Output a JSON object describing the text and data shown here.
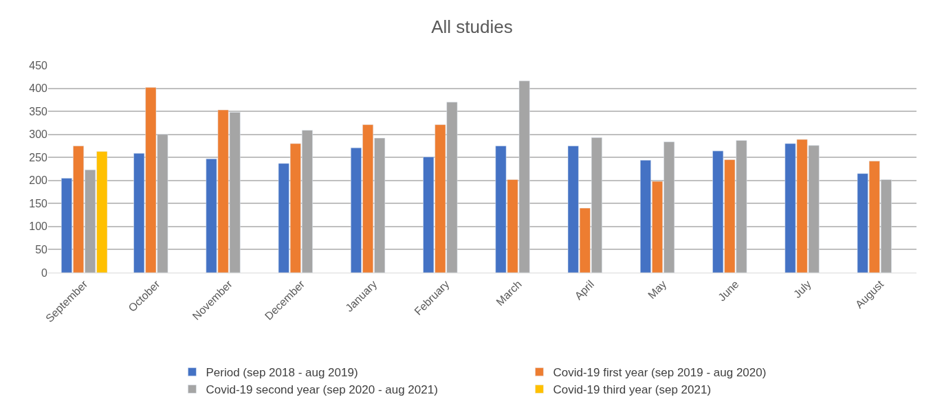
{
  "chart_data": {
    "type": "bar",
    "title": "All studies",
    "categories": [
      "September",
      "October",
      "November",
      "December",
      "January",
      "February",
      "March",
      "April",
      "May",
      "June",
      "July",
      "August"
    ],
    "series": [
      {
        "name": "Period (sep 2018 - aug 2019)",
        "color": "#4472c4",
        "values": [
          205,
          259,
          247,
          237,
          271,
          251,
          275,
          275,
          244,
          264,
          280,
          215
        ]
      },
      {
        "name": "Covid-19 first year (sep 2019 - aug 2020)",
        "color": "#ed7d31",
        "values": [
          275,
          402,
          353,
          280,
          321,
          321,
          202,
          140,
          198,
          245,
          289,
          242
        ]
      },
      {
        "name": "Covid-19 second year (sep 2020 - aug 2021)",
        "color": "#a5a5a5",
        "values": [
          223,
          300,
          348,
          309,
          292,
          370,
          416,
          293,
          284,
          287,
          276,
          202
        ]
      },
      {
        "name": "Covid-19 third year (sep 2021)",
        "color": "#ffc000",
        "values": [
          263,
          null,
          null,
          null,
          null,
          null,
          null,
          null,
          null,
          null,
          null,
          null
        ]
      }
    ],
    "ylim": [
      0,
      450
    ],
    "yticks": [
      0,
      50,
      100,
      150,
      200,
      250,
      300,
      350,
      400,
      450
    ],
    "grid": "y",
    "legend": "bottom"
  }
}
